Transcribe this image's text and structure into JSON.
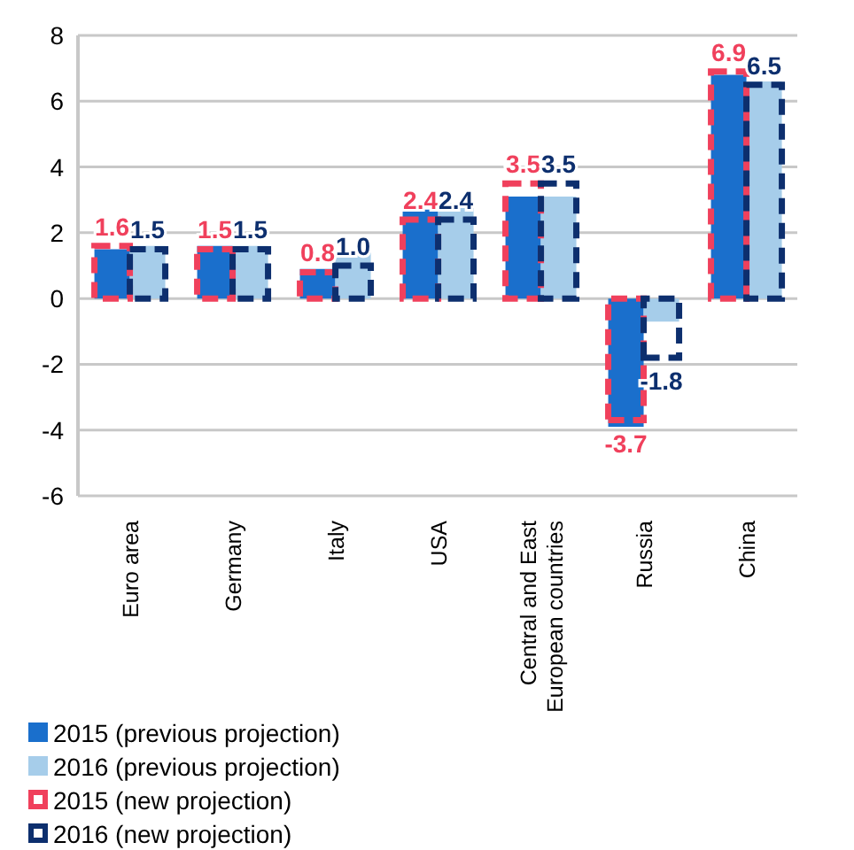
{
  "chart_data": {
    "type": "bar",
    "categories": [
      "Euro area",
      "Germany",
      "Italy",
      "USA",
      "Central and East European countries",
      "Russia",
      "China"
    ],
    "series": [
      {
        "name": "2015 (previous projection)",
        "color": "#1a6fcc",
        "values": [
          1.5,
          1.6,
          0.9,
          2.7,
          3.1,
          -3.9,
          6.8
        ]
      },
      {
        "name": "2016 (previous projection)",
        "color": "#a6cdea",
        "values": [
          1.6,
          1.6,
          1.4,
          2.9,
          3.1,
          -0.7,
          6.6
        ]
      },
      {
        "name": "2015 (new projection)",
        "color": "#f0405c",
        "line_style": "dashed",
        "values": [
          1.6,
          1.5,
          0.8,
          2.4,
          3.5,
          -3.7,
          6.9
        ],
        "value_labels": [
          "1.6",
          "1.5",
          "0.8",
          "2.4",
          "3.5",
          "-3.7",
          "6.9"
        ]
      },
      {
        "name": "2016 (new projection)",
        "color": "#0d2f6e",
        "line_style": "dashed",
        "values": [
          1.5,
          1.5,
          1.0,
          2.4,
          3.5,
          -1.8,
          6.5
        ],
        "value_labels": [
          "1.5",
          "1.5",
          "1.0",
          "2.4",
          "3.5",
          "-1.8",
          "6.5"
        ]
      }
    ],
    "ylim": [
      -6,
      8
    ],
    "yticks": [
      -6,
      -4,
      -2,
      0,
      2,
      4,
      6,
      8
    ],
    "grid": "y",
    "legend": "bottom"
  }
}
